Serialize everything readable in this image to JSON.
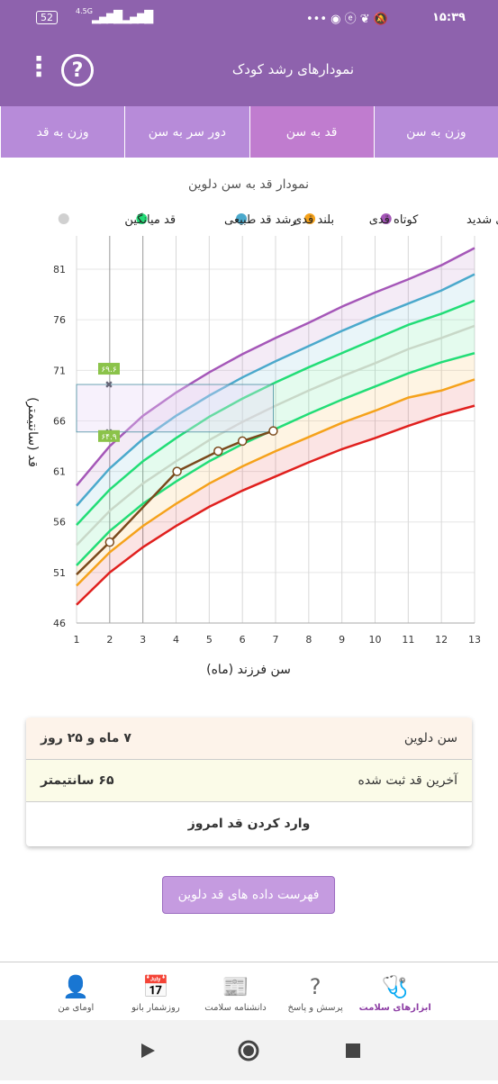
{
  "status_bar": {
    "time": "۱۵:۳۹",
    "battery": "52",
    "network": "4.5G"
  },
  "header": {
    "title": "نمودارهای رشد کودک",
    "help": "?"
  },
  "tabs": [
    "وزن به سن",
    "قد به سن",
    "دور سر به سن",
    "وزن به قد"
  ],
  "active_tab": 1,
  "chart_data": {
    "type": "line",
    "title": "نمودار قد به سن دلوین",
    "x_label": "سن فرزند (ماه)",
    "y_label": "قد (سانتیمتر)",
    "legend": [
      {
        "name": "بلند قدی شدید",
        "color": "#a557b8"
      },
      {
        "name": "کوتاه قدی",
        "color": "#f5a21b"
      },
      {
        "name": "بلند قدی",
        "color": "#4ba9cc"
      },
      {
        "name": "رشد قد طبیعی",
        "color": "#22dd77"
      },
      {
        "name": "قد میانگین",
        "color": "#d0d0d0"
      }
    ],
    "x": [
      1,
      2,
      3,
      4,
      5,
      6,
      7,
      8,
      9,
      10,
      11,
      12,
      13
    ],
    "series": [
      {
        "color": "#a557b8",
        "values": [
          59.6,
          63.5,
          66.5,
          68.8,
          70.8,
          72.6,
          74.2,
          75.7,
          77.3,
          78.7,
          80.0,
          81.4,
          83.1
        ]
      },
      {
        "color": "#4ba9cc",
        "values": [
          57.6,
          61.3,
          64.2,
          66.5,
          68.5,
          70.3,
          71.9,
          73.4,
          74.9,
          76.3,
          77.6,
          78.9,
          80.5
        ]
      },
      {
        "color": "#22dd77",
        "values": [
          55.7,
          59.2,
          62.0,
          64.3,
          66.4,
          68.2,
          69.8,
          71.3,
          72.7,
          74.1,
          75.5,
          76.6,
          77.9
        ]
      },
      {
        "color": "#c8d8c8",
        "values": [
          53.7,
          57.1,
          59.8,
          62.0,
          64.1,
          65.9,
          67.5,
          69.0,
          70.4,
          71.7,
          73.1,
          74.2,
          75.4
        ]
      },
      {
        "color": "#22dd77",
        "values": [
          51.7,
          55.1,
          57.8,
          60.0,
          62.0,
          63.7,
          65.2,
          66.7,
          68.1,
          69.4,
          70.7,
          71.8,
          72.7
        ]
      },
      {
        "color": "#f5a21b",
        "values": [
          49.7,
          53.0,
          55.6,
          57.8,
          59.8,
          61.5,
          63.0,
          64.4,
          65.8,
          67.0,
          68.3,
          69.0,
          70.1
        ]
      },
      {
        "color": "#e0201e",
        "values": [
          47.8,
          51.0,
          53.5,
          55.6,
          57.5,
          59.1,
          60.5,
          61.9,
          63.2,
          64.3,
          65.5,
          66.6,
          67.5
        ]
      }
    ],
    "child": {
      "color": "#7a4a1c",
      "x": [
        1,
        2,
        4.03,
        5.27,
        6,
        6.93
      ],
      "values": [
        50.8,
        54.0,
        61.0,
        63.0,
        64.0,
        65.0
      ]
    },
    "markers": [
      {
        "value": 69.6,
        "label": "۶۹.۶"
      },
      {
        "value": 64.9,
        "label": "۶۴.۹"
      }
    ],
    "xlim": [
      1,
      13
    ],
    "ylim": [
      46,
      84.3
    ],
    "xticks": [
      1,
      2,
      3,
      4,
      5,
      6,
      7,
      8,
      9,
      10,
      11,
      12,
      13
    ],
    "yticks": [
      46,
      51,
      56,
      61,
      66,
      71,
      76,
      81
    ],
    "grid": true
  },
  "info": {
    "rows": [
      {
        "label": "سن دلوین",
        "value": "۷ ماه و ۲۵ روز"
      },
      {
        "label": "آخرین قد ثبت شده",
        "value": "۶۵ سانتیمتر"
      }
    ],
    "action": "وارد کردن قد امروز"
  },
  "list_button": "فهرست داده های قد دلوین",
  "bottom_nav": [
    "ابزارهای سلامت",
    "پرسش و پاسخ",
    "دانشنامه سلامت",
    "روزشمار بانو",
    "اومای من"
  ]
}
